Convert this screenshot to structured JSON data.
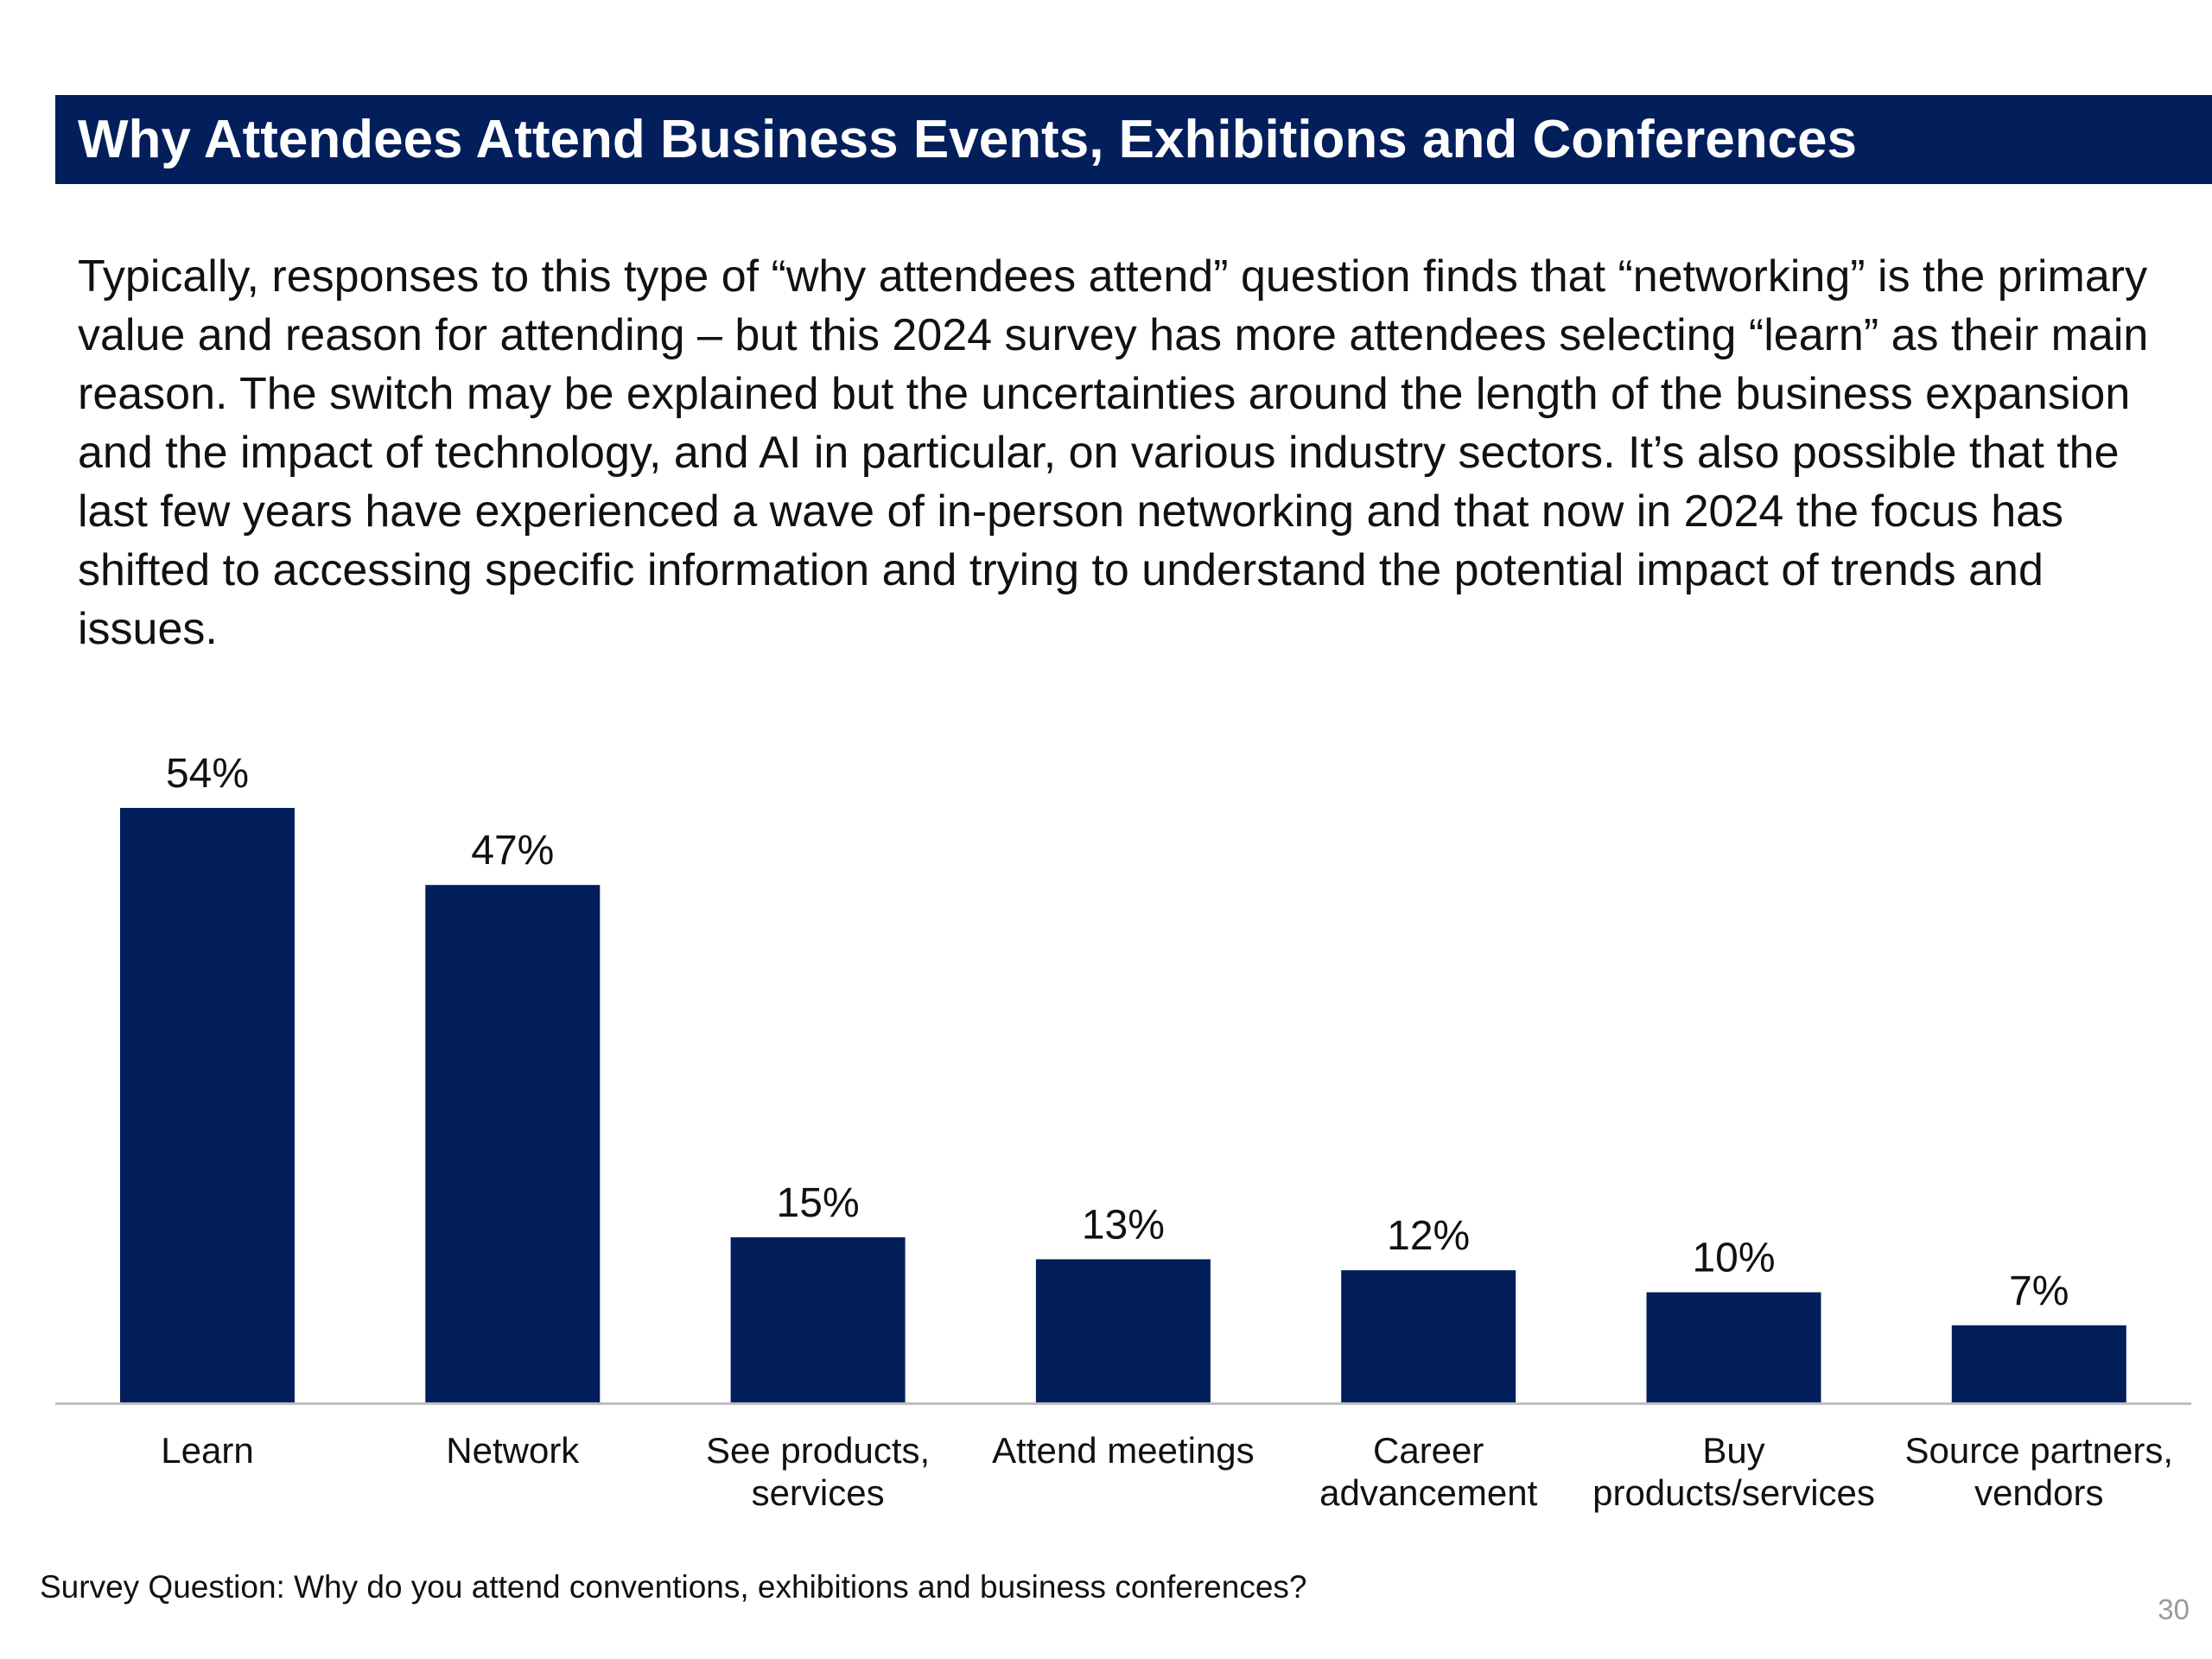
{
  "slide": {
    "title": "Why Attendees Attend Business Events, Exhibitions and Conferences",
    "body": "Typically, responses to this type of “why attendees attend” question finds that “networking” is the primary value and reason for attending – but this 2024 survey has more attendees selecting “learn” as their main reason. The switch may be explained but the uncertainties around the length of the business expansion and the impact of technology, and AI in particular, on various industry sectors. It’s also possible that the last few years have experienced a wave of in-person networking and that now in 2024 the focus has shifted to accessing specific information and trying to understand the potential impact of trends and issues.",
    "footnote": "Survey Question: Why do you attend conventions, exhibitions and business conferences?",
    "page_number": "30"
  },
  "colors": {
    "title_bar": "#021f5c",
    "bar": "#021f5c",
    "baseline": "#bfbfbf"
  },
  "chart_data": {
    "type": "bar",
    "categories": [
      [
        "Learn"
      ],
      [
        "Network"
      ],
      [
        "See products,",
        "services"
      ],
      [
        "Attend meetings"
      ],
      [
        "Career",
        "advancement"
      ],
      [
        "Buy",
        "products/services"
      ],
      [
        "Source partners,",
        "vendors"
      ]
    ],
    "values": [
      54,
      47,
      15,
      13,
      12,
      10,
      7
    ],
    "data_labels": [
      "54%",
      "47%",
      "15%",
      "13%",
      "12%",
      "10%",
      "7%"
    ],
    "unit": "%",
    "ylim": [
      0,
      54
    ],
    "grid": false,
    "legend": "none"
  }
}
